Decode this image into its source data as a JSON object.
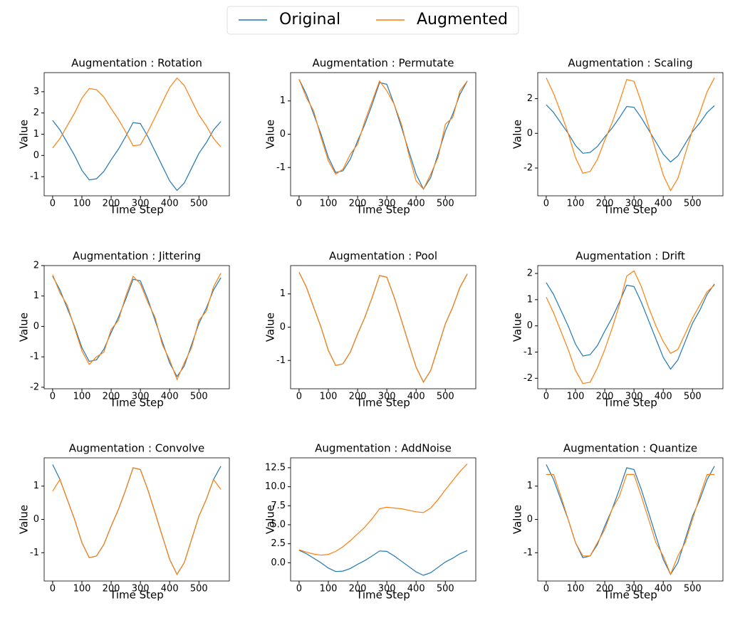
{
  "chart_data": [
    {
      "type": "line",
      "title": "Augmentation : Rotation",
      "xlabel": "Time Step",
      "ylabel": "Value",
      "x": [
        0,
        25,
        50,
        75,
        100,
        125,
        150,
        175,
        200,
        225,
        250,
        275,
        300,
        325,
        350,
        375,
        400,
        425,
        450,
        475,
        500,
        525,
        550,
        575
      ],
      "series": [
        {
          "name": "Original",
          "color": "#1f77b4",
          "values": [
            1.65,
            1.2,
            0.6,
            0.0,
            -0.7,
            -1.15,
            -1.1,
            -0.75,
            -0.2,
            0.3,
            0.9,
            1.55,
            1.5,
            0.9,
            0.2,
            -0.5,
            -1.2,
            -1.65,
            -1.3,
            -0.6,
            0.1,
            0.6,
            1.2,
            1.6
          ]
        },
        {
          "name": "Augmented",
          "color": "#ff7f0e",
          "values": [
            0.35,
            0.8,
            1.4,
            2.0,
            2.7,
            3.15,
            3.1,
            2.75,
            2.2,
            1.7,
            1.1,
            0.45,
            0.5,
            1.1,
            1.8,
            2.5,
            3.2,
            3.65,
            3.3,
            2.6,
            1.9,
            1.4,
            0.8,
            0.4
          ]
        }
      ],
      "xlim": [
        -29,
        604
      ],
      "xticks": [
        0,
        100,
        200,
        300,
        400,
        500
      ],
      "ylim": [
        -1.9,
        3.9
      ],
      "yticks": [
        -1,
        0,
        1,
        2,
        3
      ]
    },
    {
      "type": "line",
      "title": "Augmentation : Permutate",
      "xlabel": "Time Step",
      "ylabel": "Value",
      "x": [
        0,
        25,
        50,
        75,
        100,
        125,
        150,
        175,
        200,
        225,
        250,
        275,
        300,
        325,
        350,
        375,
        400,
        425,
        450,
        475,
        500,
        525,
        550,
        575
      ],
      "series": [
        {
          "name": "Original",
          "color": "#1f77b4",
          "values": [
            1.65,
            1.2,
            0.6,
            0.0,
            -0.7,
            -1.15,
            -1.1,
            -0.75,
            -0.2,
            0.3,
            0.9,
            1.55,
            1.5,
            0.9,
            0.2,
            -0.5,
            -1.2,
            -1.65,
            -1.3,
            -0.6,
            0.1,
            0.6,
            1.2,
            1.6
          ]
        },
        {
          "name": "Augmented",
          "color": "#ff7f0e",
          "values": [
            1.65,
            1.1,
            0.7,
            -0.1,
            -0.8,
            -1.2,
            -1.05,
            -0.6,
            -0.3,
            0.4,
            1.0,
            1.6,
            1.3,
            0.9,
            0.3,
            -0.6,
            -1.4,
            -1.65,
            -1.2,
            -0.7,
            0.3,
            0.5,
            1.3,
            1.6
          ]
        }
      ],
      "xlim": [
        -29,
        604
      ],
      "xticks": [
        0,
        100,
        200,
        300,
        400,
        500
      ],
      "ylim": [
        -1.85,
        1.85
      ],
      "yticks": [
        -1,
        0,
        1
      ]
    },
    {
      "type": "line",
      "title": "Augmentation : Scaling",
      "xlabel": "Time Step",
      "ylabel": "Value",
      "x": [
        0,
        25,
        50,
        75,
        100,
        125,
        150,
        175,
        200,
        225,
        250,
        275,
        300,
        325,
        350,
        375,
        400,
        425,
        450,
        475,
        500,
        525,
        550,
        575
      ],
      "series": [
        {
          "name": "Original",
          "color": "#1f77b4",
          "values": [
            1.65,
            1.2,
            0.6,
            0.0,
            -0.7,
            -1.15,
            -1.1,
            -0.75,
            -0.2,
            0.3,
            0.9,
            1.55,
            1.5,
            0.9,
            0.2,
            -0.5,
            -1.2,
            -1.65,
            -1.3,
            -0.6,
            0.1,
            0.6,
            1.2,
            1.6
          ]
        },
        {
          "name": "Augmented",
          "color": "#ff7f0e",
          "values": [
            3.2,
            2.3,
            1.2,
            0.0,
            -1.4,
            -2.3,
            -2.2,
            -1.5,
            -0.4,
            0.6,
            1.8,
            3.1,
            3.0,
            1.8,
            0.4,
            -1.0,
            -2.4,
            -3.3,
            -2.6,
            -1.2,
            0.2,
            1.2,
            2.4,
            3.2
          ]
        }
      ],
      "xlim": [
        -29,
        604
      ],
      "xticks": [
        0,
        100,
        200,
        300,
        400,
        500
      ],
      "ylim": [
        -3.6,
        3.5
      ],
      "yticks": [
        -2,
        0,
        2
      ]
    },
    {
      "type": "line",
      "title": "Augmentation : Jittering",
      "xlabel": "Time Step",
      "ylabel": "Value",
      "x": [
        0,
        25,
        50,
        75,
        100,
        125,
        150,
        175,
        200,
        225,
        250,
        275,
        300,
        325,
        350,
        375,
        400,
        425,
        450,
        475,
        500,
        525,
        550,
        575
      ],
      "series": [
        {
          "name": "Original",
          "color": "#1f77b4",
          "values": [
            1.65,
            1.2,
            0.6,
            0.0,
            -0.7,
            -1.15,
            -1.1,
            -0.75,
            -0.2,
            0.3,
            0.9,
            1.55,
            1.5,
            0.9,
            0.2,
            -0.5,
            -1.2,
            -1.65,
            -1.3,
            -0.6,
            0.1,
            0.6,
            1.2,
            1.6
          ]
        },
        {
          "name": "Augmented",
          "color": "#ff7f0e",
          "values": [
            1.7,
            1.1,
            0.7,
            -0.05,
            -0.8,
            -1.25,
            -1.0,
            -0.85,
            -0.1,
            0.2,
            1.0,
            1.65,
            1.4,
            0.8,
            0.3,
            -0.6,
            -1.1,
            -1.75,
            -1.2,
            -0.7,
            0.2,
            0.5,
            1.3,
            1.75
          ]
        }
      ],
      "xlim": [
        -29,
        604
      ],
      "xticks": [
        0,
        100,
        200,
        300,
        400,
        500
      ],
      "ylim": [
        -2.05,
        2.0
      ],
      "yticks": [
        -2,
        -1,
        0,
        1,
        2
      ]
    },
    {
      "type": "line",
      "title": "Augmentation : Pool",
      "xlabel": "Time Step",
      "ylabel": "Value",
      "x": [
        0,
        25,
        50,
        75,
        100,
        125,
        150,
        175,
        200,
        225,
        250,
        275,
        300,
        325,
        350,
        375,
        400,
        425,
        450,
        475,
        500,
        525,
        550,
        575
      ],
      "series": [
        {
          "name": "Original",
          "color": "#1f77b4",
          "values": [
            1.65,
            1.2,
            0.6,
            0.0,
            -0.7,
            -1.15,
            -1.1,
            -0.75,
            -0.2,
            0.3,
            0.9,
            1.55,
            1.5,
            0.9,
            0.2,
            -0.5,
            -1.2,
            -1.65,
            -1.3,
            -0.6,
            0.1,
            0.6,
            1.2,
            1.6
          ]
        },
        {
          "name": "Augmented",
          "color": "#ff7f0e",
          "values": [
            1.65,
            1.2,
            0.6,
            0.0,
            -0.7,
            -1.15,
            -1.1,
            -0.75,
            -0.2,
            0.3,
            0.9,
            1.55,
            1.5,
            0.9,
            0.2,
            -0.5,
            -1.2,
            -1.65,
            -1.3,
            -0.6,
            0.1,
            0.6,
            1.2,
            1.6
          ]
        }
      ],
      "xlim": [
        -29,
        604
      ],
      "xticks": [
        0,
        100,
        200,
        300,
        400,
        500
      ],
      "ylim": [
        -1.85,
        1.85
      ],
      "yticks": [
        -1,
        0,
        1
      ]
    },
    {
      "type": "line",
      "title": "Augmentation : Drift",
      "xlabel": "Time Step",
      "ylabel": "Value",
      "x": [
        0,
        25,
        50,
        75,
        100,
        125,
        150,
        175,
        200,
        225,
        250,
        275,
        300,
        325,
        350,
        375,
        400,
        425,
        450,
        475,
        500,
        525,
        550,
        575
      ],
      "series": [
        {
          "name": "Original",
          "color": "#1f77b4",
          "values": [
            1.65,
            1.2,
            0.6,
            0.0,
            -0.7,
            -1.15,
            -1.1,
            -0.75,
            -0.2,
            0.3,
            0.9,
            1.55,
            1.5,
            0.9,
            0.2,
            -0.5,
            -1.2,
            -1.65,
            -1.3,
            -0.6,
            0.1,
            0.6,
            1.2,
            1.6
          ]
        },
        {
          "name": "Augmented",
          "color": "#ff7f0e",
          "values": [
            1.1,
            0.5,
            -0.2,
            -0.9,
            -1.7,
            -2.2,
            -2.15,
            -1.6,
            -0.9,
            -0.1,
            0.8,
            1.9,
            2.1,
            1.5,
            0.7,
            0.0,
            -0.6,
            -1.05,
            -0.9,
            -0.3,
            0.3,
            0.8,
            1.3,
            1.55
          ]
        }
      ],
      "xlim": [
        -29,
        604
      ],
      "xticks": [
        0,
        100,
        200,
        300,
        400,
        500
      ],
      "ylim": [
        -2.4,
        2.3
      ],
      "yticks": [
        -2,
        -1,
        0,
        1,
        2
      ]
    },
    {
      "type": "line",
      "title": "Augmentation : Convolve",
      "xlabel": "Time Step",
      "ylabel": "Value",
      "x": [
        0,
        25,
        50,
        75,
        100,
        125,
        150,
        175,
        200,
        225,
        250,
        275,
        300,
        325,
        350,
        375,
        400,
        425,
        450,
        475,
        500,
        525,
        550,
        575
      ],
      "series": [
        {
          "name": "Original",
          "color": "#1f77b4",
          "values": [
            1.65,
            1.2,
            0.6,
            0.0,
            -0.7,
            -1.15,
            -1.1,
            -0.75,
            -0.2,
            0.3,
            0.9,
            1.55,
            1.5,
            0.9,
            0.2,
            -0.5,
            -1.2,
            -1.65,
            -1.3,
            -0.6,
            0.1,
            0.6,
            1.2,
            1.6
          ]
        },
        {
          "name": "Augmented",
          "color": "#ff7f0e",
          "values": [
            0.85,
            1.2,
            0.6,
            0.0,
            -0.7,
            -1.15,
            -1.1,
            -0.75,
            -0.2,
            0.3,
            0.9,
            1.55,
            1.5,
            0.9,
            0.2,
            -0.5,
            -1.2,
            -1.65,
            -1.3,
            -0.6,
            0.1,
            0.6,
            1.2,
            0.9
          ]
        }
      ],
      "xlim": [
        -29,
        604
      ],
      "xticks": [
        0,
        100,
        200,
        300,
        400,
        500
      ],
      "ylim": [
        -1.85,
        1.85
      ],
      "yticks": [
        -1,
        0,
        1
      ]
    },
    {
      "type": "line",
      "title": "Augmentation : AddNoise",
      "xlabel": "Time Step",
      "ylabel": "Value",
      "x": [
        0,
        25,
        50,
        75,
        100,
        125,
        150,
        175,
        200,
        225,
        250,
        275,
        300,
        325,
        350,
        375,
        400,
        425,
        450,
        475,
        500,
        525,
        550,
        575
      ],
      "series": [
        {
          "name": "Original",
          "color": "#1f77b4",
          "values": [
            1.65,
            1.2,
            0.6,
            0.0,
            -0.7,
            -1.15,
            -1.1,
            -0.75,
            -0.2,
            0.3,
            0.9,
            1.55,
            1.5,
            0.9,
            0.2,
            -0.5,
            -1.2,
            -1.65,
            -1.3,
            -0.6,
            0.1,
            0.6,
            1.2,
            1.6
          ]
        },
        {
          "name": "Augmented",
          "color": "#ff7f0e",
          "values": [
            1.7,
            1.4,
            1.15,
            1.0,
            1.1,
            1.5,
            2.1,
            2.9,
            3.8,
            4.7,
            5.8,
            7.1,
            7.3,
            7.2,
            7.1,
            6.9,
            6.7,
            6.6,
            7.2,
            8.3,
            9.6,
            10.8,
            12.0,
            13.0
          ]
        }
      ],
      "xlim": [
        -29,
        604
      ],
      "xticks": [
        0,
        100,
        200,
        300,
        400,
        500
      ],
      "ylim": [
        -2.4,
        13.8
      ],
      "yticks": [
        {
          "value": 0,
          "label": "0.0"
        },
        2.5,
        {
          "value": 5,
          "label": "5.0"
        },
        7.5,
        {
          "value": 10,
          "label": "10.0"
        },
        12.5
      ]
    },
    {
      "type": "line",
      "title": "Augmentation : Quantize",
      "xlabel": "Time Step",
      "ylabel": "Value",
      "x": [
        0,
        25,
        50,
        75,
        100,
        125,
        150,
        175,
        200,
        225,
        250,
        275,
        300,
        325,
        350,
        375,
        400,
        425,
        450,
        475,
        500,
        525,
        550,
        575
      ],
      "series": [
        {
          "name": "Original",
          "color": "#1f77b4",
          "values": [
            1.65,
            1.2,
            0.6,
            0.0,
            -0.7,
            -1.15,
            -1.1,
            -0.75,
            -0.2,
            0.3,
            0.9,
            1.55,
            1.5,
            0.9,
            0.2,
            -0.5,
            -1.2,
            -1.65,
            -1.3,
            -0.6,
            0.1,
            0.6,
            1.2,
            1.6
          ]
        },
        {
          "name": "Augmented",
          "color": "#ff7f0e",
          "values": [
            1.35,
            1.35,
            0.7,
            0.0,
            -0.7,
            -1.1,
            -1.1,
            -0.7,
            -0.3,
            0.3,
            0.7,
            1.35,
            1.35,
            0.7,
            0.0,
            -0.7,
            -1.1,
            -1.65,
            -1.1,
            -0.7,
            0.0,
            0.7,
            1.35,
            1.35
          ]
        }
      ],
      "xlim": [
        -29,
        604
      ],
      "xticks": [
        0,
        100,
        200,
        300,
        400,
        500
      ],
      "ylim": [
        -1.85,
        1.85
      ],
      "yticks": [
        -1,
        0,
        1
      ]
    }
  ]
}
